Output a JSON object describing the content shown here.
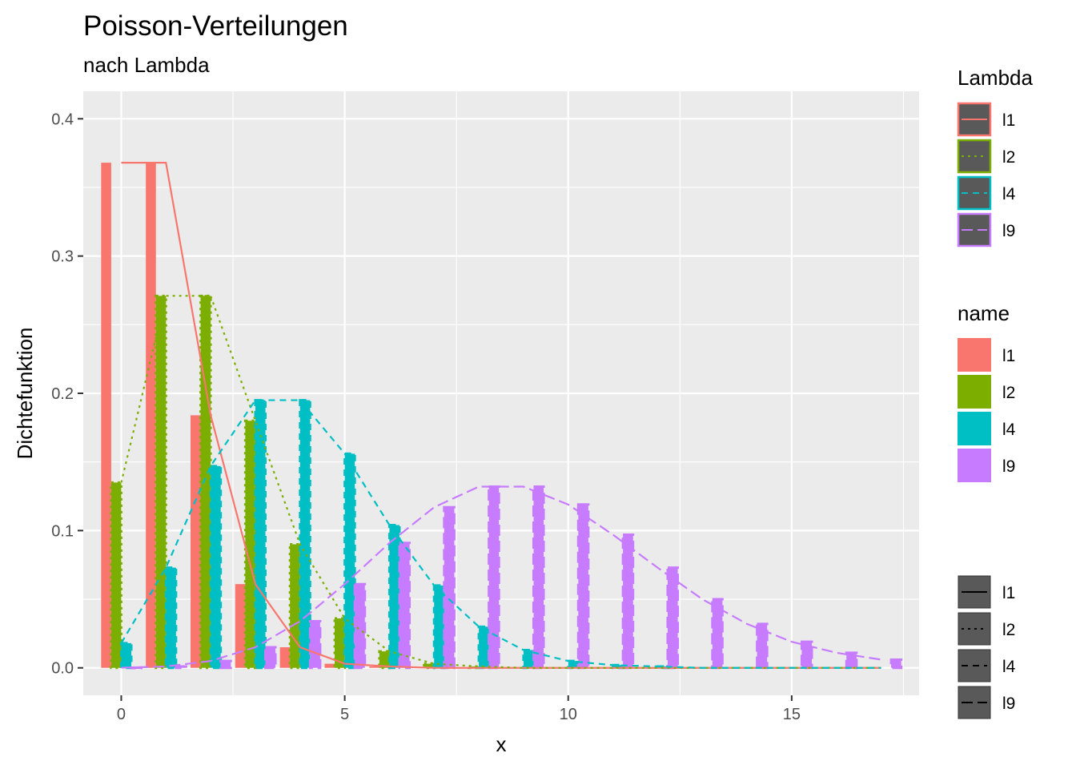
{
  "chart_data": {
    "type": "bar",
    "title": "Poisson-Verteilungen",
    "subtitle": "nach Lambda",
    "xlabel": "x",
    "ylabel": "Dichtefunktion",
    "xlim": [
      -0.85,
      17.85
    ],
    "ylim": [
      -0.02,
      0.42
    ],
    "x_ticks": [
      "0",
      "5",
      "10",
      "15"
    ],
    "y_ticks": [
      "0.0",
      "0.1",
      "0.2",
      "0.3",
      "0.4"
    ],
    "x": [
      0,
      1,
      2,
      3,
      4,
      5,
      6,
      7,
      8,
      9,
      10,
      11,
      12,
      13,
      14,
      15,
      16,
      17
    ],
    "series": [
      {
        "name": "l1",
        "color": "#F8766D",
        "linetype": "solid",
        "values": [
          0.368,
          0.368,
          0.184,
          0.061,
          0.015,
          0.003,
          0.001,
          0,
          0,
          0,
          0,
          0,
          0,
          0,
          0,
          0,
          0,
          0
        ]
      },
      {
        "name": "l2",
        "color": "#7CAE00",
        "linetype": "dotted",
        "values": [
          0.135,
          0.271,
          0.271,
          0.18,
          0.09,
          0.036,
          0.012,
          0.003,
          0.001,
          0,
          0,
          0,
          0,
          0,
          0,
          0,
          0,
          0
        ]
      },
      {
        "name": "l4",
        "color": "#00BFC4",
        "linetype": "dashed",
        "values": [
          0.018,
          0.073,
          0.147,
          0.195,
          0.195,
          0.156,
          0.104,
          0.06,
          0.03,
          0.013,
          0.005,
          0.002,
          0.001,
          0,
          0,
          0,
          0,
          0
        ]
      },
      {
        "name": "l9",
        "color": "#C77CFF",
        "linetype": "longdash",
        "values": [
          0.0001,
          0.001,
          0.005,
          0.015,
          0.034,
          0.061,
          0.091,
          0.117,
          0.132,
          0.132,
          0.119,
          0.097,
          0.073,
          0.05,
          0.032,
          0.019,
          0.011,
          0.006
        ]
      }
    ],
    "legends": [
      {
        "title": "Lambda",
        "items": [
          "l1",
          "l2",
          "l4",
          "l9"
        ]
      },
      {
        "title": "name",
        "items": [
          "l1",
          "l2",
          "l4",
          "l9"
        ]
      },
      {
        "title": "",
        "items": [
          "l1",
          "l2",
          "l4",
          "l9"
        ]
      }
    ]
  }
}
